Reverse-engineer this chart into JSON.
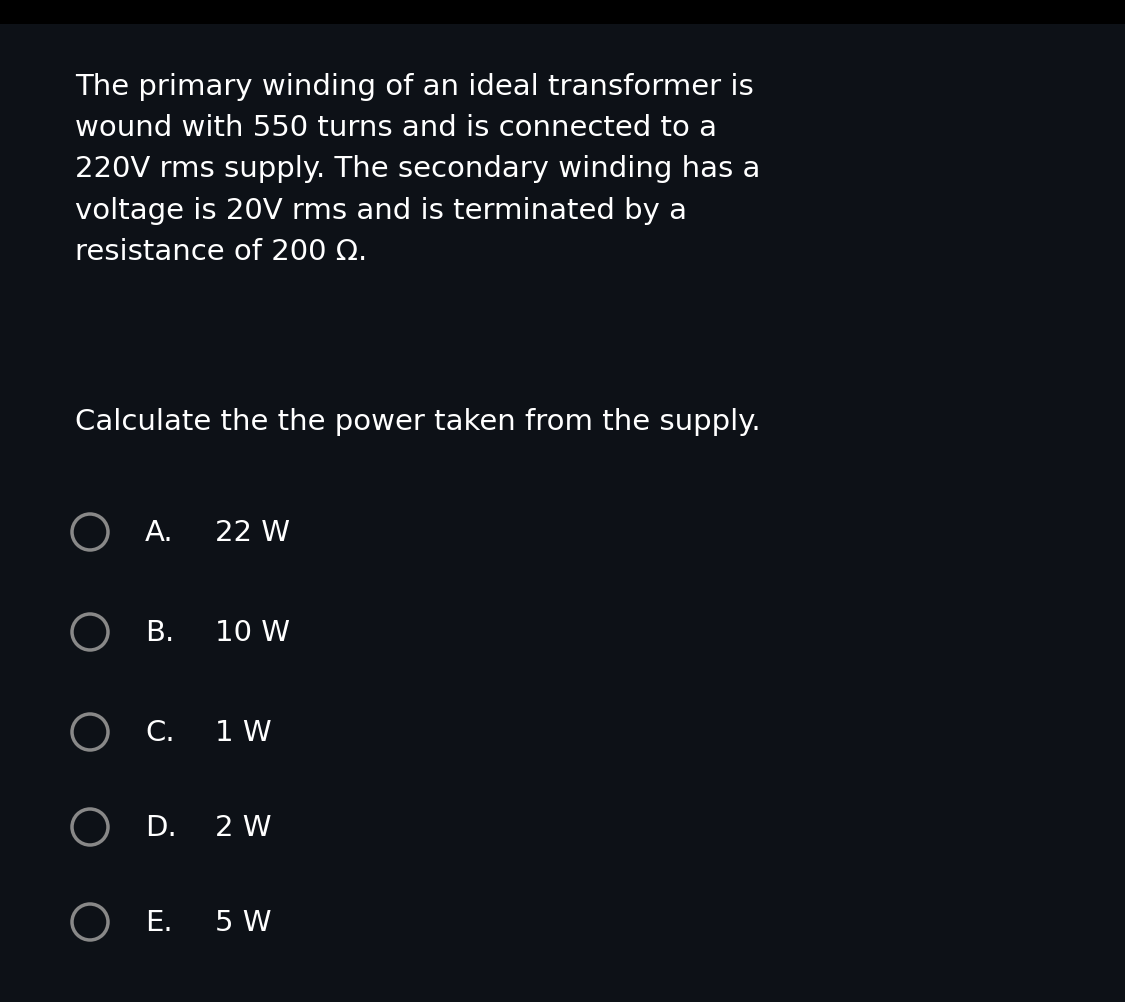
{
  "background_color": "#0d1117",
  "top_bar_color": "#000000",
  "text_color": "#ffffff",
  "circle_edge_color": "#888888",
  "circle_fill_color": "#0d1117",
  "question_text": "The primary winding of an ideal transformer is\nwound with 550 turns and is connected to a\n220V rms supply. The secondary winding has a\nvoltage is 20V rms and is terminated by a\nresistance of 200 Ω.",
  "sub_question": "Calculate the the power taken from the supply.",
  "options": [
    {
      "label": "A.",
      "text": "22 W"
    },
    {
      "label": "B.",
      "text": "10 W"
    },
    {
      "label": "C.",
      "text": "1 W"
    },
    {
      "label": "D.",
      "text": "2 W"
    },
    {
      "label": "E.",
      "text": "5 W"
    }
  ],
  "font_size_question": 21,
  "font_size_options": 21,
  "font_family": "DejaVu Sans",
  "fig_width": 11.25,
  "fig_height": 10.03,
  "dpi": 100
}
